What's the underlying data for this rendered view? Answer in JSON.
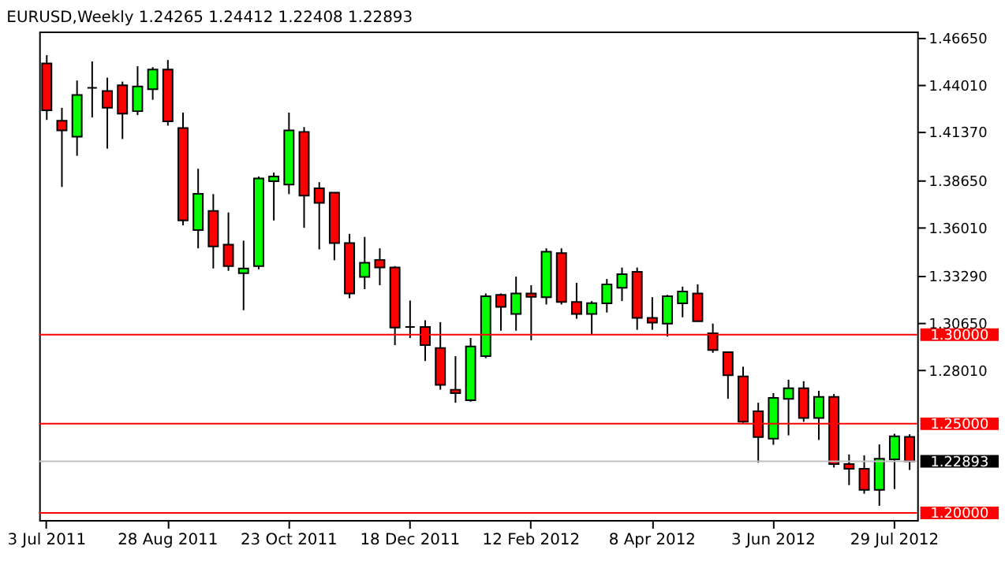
{
  "chart_data": {
    "type": "candlestick",
    "title": "EURUSD,Weekly  1.24265 1.24412 1.22408 1.22893",
    "categories": [
      "3 Jul 2011",
      null,
      null,
      null,
      null,
      null,
      null,
      null,
      "28 Aug 2011",
      null,
      null,
      null,
      null,
      null,
      null,
      null,
      "23 Oct 2011",
      null,
      null,
      null,
      null,
      null,
      null,
      null,
      "18 Dec 2011",
      null,
      null,
      null,
      null,
      null,
      null,
      null,
      "12 Feb 2012",
      null,
      null,
      null,
      null,
      null,
      null,
      null,
      "8 Apr 2012",
      null,
      null,
      null,
      null,
      null,
      null,
      null,
      "3 Jun 2012",
      null,
      null,
      null,
      null,
      null,
      null,
      null,
      "29 Jul 2012",
      null
    ],
    "ohlc": [
      [
        1.4521,
        1.4567,
        1.4204,
        1.4258
      ],
      [
        1.4199,
        1.4272,
        1.3828,
        1.4145
      ],
      [
        1.411,
        1.4425,
        1.4003,
        1.4344
      ],
      [
        1.4384,
        1.4532,
        1.4218,
        1.4384
      ],
      [
        1.4366,
        1.4441,
        1.4043,
        1.4272
      ],
      [
        1.4398,
        1.4419,
        1.4097,
        1.4239
      ],
      [
        1.4253,
        1.4505,
        1.4231,
        1.4392
      ],
      [
        1.4376,
        1.45,
        1.4317,
        1.4487
      ],
      [
        1.4487,
        1.454,
        1.4172,
        1.4196
      ],
      [
        1.4159,
        1.4245,
        1.3613,
        1.364
      ],
      [
        1.3586,
        1.393,
        1.3484,
        1.379
      ],
      [
        1.3694,
        1.3788,
        1.3371,
        1.3495
      ],
      [
        1.3505,
        1.3685,
        1.3358,
        1.3384
      ],
      [
        1.3344,
        1.3527,
        1.3137,
        1.3371
      ],
      [
        1.3384,
        1.3887,
        1.3366,
        1.3876
      ],
      [
        1.386,
        1.3909,
        1.364,
        1.3887
      ],
      [
        1.3841,
        1.4245,
        1.3788,
        1.4145
      ],
      [
        1.4137,
        1.4164,
        1.3599,
        1.378
      ],
      [
        1.382,
        1.3855,
        1.3478,
        1.3739
      ],
      [
        1.3796,
        1.3796,
        1.3417,
        1.3513
      ],
      [
        1.3513,
        1.3565,
        1.3204,
        1.3231
      ],
      [
        1.3323,
        1.3548,
        1.3255,
        1.3403
      ],
      [
        1.3419,
        1.3484,
        1.3277,
        1.3376
      ],
      [
        1.3376,
        1.3384,
        1.2941,
        1.304
      ],
      [
        1.3043,
        1.3191,
        1.2981,
        1.3043
      ],
      [
        1.3043,
        1.3081,
        1.2852,
        1.2941
      ],
      [
        1.2925,
        1.307,
        1.2691,
        1.2718
      ],
      [
        1.2691,
        1.2879,
        1.2618,
        1.2672
      ],
      [
        1.2632,
        1.2981,
        1.2624,
        1.2933
      ],
      [
        1.2879,
        1.3231,
        1.2868,
        1.3215
      ],
      [
        1.3223,
        1.3231,
        1.3022,
        1.3156
      ],
      [
        1.3116,
        1.3325,
        1.3022,
        1.3231
      ],
      [
        1.3231,
        1.3277,
        1.2968,
        1.3212
      ],
      [
        1.321,
        1.3484,
        1.3169,
        1.3465
      ],
      [
        1.3457,
        1.3484,
        1.3169,
        1.3183
      ],
      [
        1.3183,
        1.329,
        1.3089,
        1.3116
      ],
      [
        1.3116,
        1.3188,
        1.3,
        1.3177
      ],
      [
        1.3175,
        1.3312,
        1.3124,
        1.3282
      ],
      [
        1.3263,
        1.3376,
        1.3188,
        1.3339
      ],
      [
        1.3352,
        1.3376,
        1.3027,
        1.3094
      ],
      [
        1.3094,
        1.321,
        1.3027,
        1.3067
      ],
      [
        1.3062,
        1.3223,
        1.2989,
        1.3215
      ],
      [
        1.3175,
        1.3269,
        1.3097,
        1.3242
      ],
      [
        1.3231,
        1.3282,
        1.3075,
        1.3075
      ],
      [
        1.3008,
        1.3062,
        1.2898,
        1.2914
      ],
      [
        1.2901,
        1.2901,
        1.264,
        1.2772
      ],
      [
        1.2766,
        1.282,
        1.2505,
        1.2511
      ],
      [
        1.257,
        1.2618,
        1.2282,
        1.2425
      ],
      [
        1.2417,
        1.2672,
        1.2382,
        1.2645
      ],
      [
        1.264,
        1.2747,
        1.2435,
        1.2699
      ],
      [
        1.2699,
        1.2739,
        1.2511,
        1.2532
      ],
      [
        1.2532,
        1.2685,
        1.2409,
        1.2651
      ],
      [
        1.2651,
        1.2667,
        1.2255,
        1.2274
      ],
      [
        1.2274,
        1.2328,
        1.2156,
        1.2247
      ],
      [
        1.2247,
        1.2323,
        1.2108,
        1.2129
      ],
      [
        1.2129,
        1.2384,
        1.204,
        1.2304
      ],
      [
        1.2301,
        1.2444,
        1.2134,
        1.243
      ],
      [
        1.24265,
        1.24412,
        1.22408,
        1.22893
      ]
    ],
    "colors": [
      "#ff0000",
      "#ff0000",
      "#00ff00",
      "#000000",
      "#ff0000",
      "#ff0000",
      "#00ff00",
      "#00ff00",
      "#ff0000",
      "#ff0000",
      "#00ff00",
      "#ff0000",
      "#ff0000",
      "#00ff00",
      "#00ff00",
      "#00ff00",
      "#00ff00",
      "#ff0000",
      "#ff0000",
      "#ff0000",
      "#ff0000",
      "#00ff00",
      "#ff0000",
      "#ff0000",
      "#000000",
      "#ff0000",
      "#ff0000",
      "#ff0000",
      "#00ff00",
      "#00ff00",
      "#ff0000",
      "#00ff00",
      "#ff0000",
      "#00ff00",
      "#ff0000",
      "#ff0000",
      "#00ff00",
      "#00ff00",
      "#00ff00",
      "#ff0000",
      "#ff0000",
      "#00ff00",
      "#00ff00",
      "#ff0000",
      "#ff0000",
      "#ff0000",
      "#ff0000",
      "#ff0000",
      "#00ff00",
      "#00ff00",
      "#ff0000",
      "#00ff00",
      "#ff0000",
      "#ff0000",
      "#ff0000",
      "#00ff00",
      "#00ff00",
      "#ff0000"
    ],
    "ylim": [
      1.196,
      1.47
    ],
    "yticks": [
      {
        "value": 1.4665,
        "label": "1.46650"
      },
      {
        "value": 1.4401,
        "label": "1.44010"
      },
      {
        "value": 1.4137,
        "label": "1.41370"
      },
      {
        "value": 1.3865,
        "label": "1.38650"
      },
      {
        "value": 1.3601,
        "label": "1.36010"
      },
      {
        "value": 1.3329,
        "label": "1.33290"
      },
      {
        "value": 1.3065,
        "label": "1.30650"
      },
      {
        "value": 1.2801,
        "label": "1.28010"
      }
    ],
    "ref_lines": [
      {
        "axis": "y",
        "value": 1.3,
        "label": "1.30000",
        "color": "#ff0000"
      },
      {
        "axis": "y",
        "value": 1.25,
        "label": "1.25000",
        "color": "#ff0000"
      },
      {
        "axis": "y",
        "value": 1.22893,
        "label": "1.22893",
        "color": "#c0c0c0"
      },
      {
        "axis": "y",
        "value": 1.2,
        "label": "1.20000",
        "color": "#ff0000"
      }
    ],
    "grid": false
  }
}
